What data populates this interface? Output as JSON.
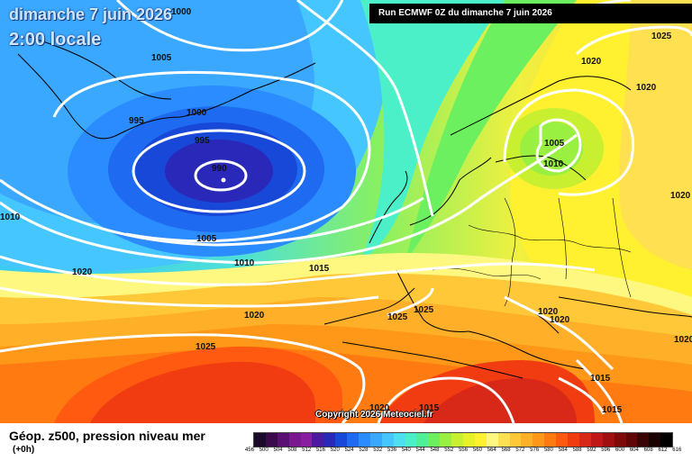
{
  "title": {
    "date": "dimanche 7 juin 2026",
    "time": "2:00 locale"
  },
  "run_banner": "Run ECMWF 0Z du dimanche 7 juin 2026",
  "copyright": "Copyright 2026 Meteociel.fr",
  "footer": {
    "field": "Géop. z500, pression niveau mer",
    "lead": "(+0h)"
  },
  "isobar_labels": {
    "l1000_top": "1000",
    "l1005_nw": "1005",
    "l995_a": "995",
    "l1000_b": "1000",
    "l995_b": "995",
    "l990": "990",
    "l1005_c": "1005",
    "l1010_c": "1010",
    "l1015_c": "1015",
    "l1020_w": "1020",
    "l1010_w": "1010",
    "l1020_mid": "1020",
    "l1025_mid": "1025",
    "l1025_ib": "1025",
    "l1025_fr": "1025",
    "l1020_ne": "1020",
    "l1025_ne": "1025",
    "l1020_ne2": "1020",
    "l1005_sc": "1005",
    "l1010_sc": "1010",
    "l1020_e": "1020",
    "l1020_it": "1020",
    "l1020_bal": "1020",
    "l1015_gr": "1015",
    "l1020_afr": "1020",
    "l1015_afr": "1015",
    "l1015_tr": "1015",
    "l1020_east": "1020"
  },
  "legend": {
    "colors": [
      "#1a0a2a",
      "#3a0a4a",
      "#5a1070",
      "#7a1890",
      "#8a1ea0",
      "#4a1aa0",
      "#2a28b8",
      "#1848d8",
      "#1e6af0",
      "#2a8cff",
      "#3aa8ff",
      "#46c6ff",
      "#4ee0f0",
      "#4cf0c8",
      "#50f098",
      "#6cf060",
      "#9af040",
      "#c8f030",
      "#e8f028",
      "#fff030",
      "#fff880",
      "#ffe050",
      "#ffc838",
      "#ffb028",
      "#ff9818",
      "#ff7a10",
      "#ff5a10",
      "#f03c10",
      "#d82818",
      "#c01818",
      "#a01010",
      "#800a0a",
      "#600606",
      "#3a0404",
      "#1a0202",
      "#000000"
    ],
    "ticks": [
      "456",
      "500",
      "504",
      "508",
      "512",
      "516",
      "520",
      "524",
      "528",
      "532",
      "536",
      "540",
      "544",
      "548",
      "552",
      "556",
      "560",
      "564",
      "568",
      "572",
      "576",
      "580",
      "584",
      "588",
      "592",
      "596",
      "600",
      "604",
      "608",
      "612",
      "616"
    ]
  },
  "colors": {
    "isobar": "#ffffff",
    "coast": "#000000"
  }
}
